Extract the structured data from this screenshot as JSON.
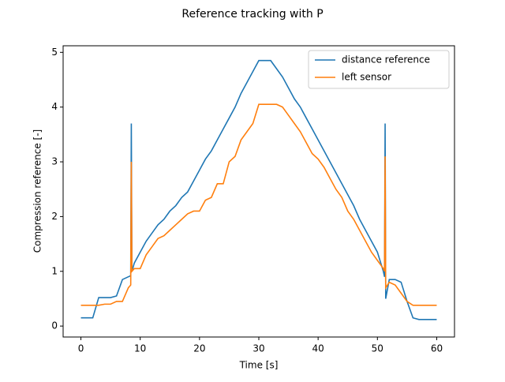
{
  "chart_data": {
    "type": "line",
    "title": "Reference tracking with P",
    "xlabel": "Time [s]",
    "ylabel": "Compression reference [-]",
    "x": [
      0,
      1,
      2,
      3,
      4,
      5,
      6,
      7,
      8,
      8.4,
      8.5,
      8.6,
      9,
      10,
      11,
      12,
      13,
      14,
      15,
      16,
      17,
      18,
      19,
      20,
      21,
      22,
      23,
      24,
      25,
      26,
      27,
      28,
      29,
      30,
      31,
      32,
      33,
      34,
      35,
      36,
      37,
      38,
      39,
      40,
      41,
      42,
      43,
      44,
      45,
      46,
      47,
      48,
      49,
      50,
      51,
      51.2,
      51.3,
      51.4,
      52,
      53,
      54,
      55,
      56,
      57,
      58,
      59,
      60
    ],
    "series": [
      {
        "name": "distance reference",
        "color": "#1f77b4",
        "values": [
          0.15,
          0.15,
          0.15,
          0.52,
          0.52,
          0.52,
          0.55,
          0.85,
          0.9,
          0.92,
          3.7,
          1.0,
          1.15,
          1.35,
          1.55,
          1.7,
          1.85,
          1.95,
          2.1,
          2.2,
          2.35,
          2.45,
          2.65,
          2.85,
          3.05,
          3.2,
          3.4,
          3.6,
          3.8,
          4.0,
          4.25,
          4.45,
          4.65,
          4.85,
          4.85,
          4.85,
          4.7,
          4.55,
          4.35,
          4.15,
          4.0,
          3.8,
          3.6,
          3.4,
          3.2,
          3.0,
          2.8,
          2.6,
          2.4,
          2.2,
          1.95,
          1.75,
          1.55,
          1.35,
          1.0,
          0.9,
          3.7,
          0.5,
          0.85,
          0.85,
          0.8,
          0.45,
          0.15,
          0.12,
          0.12,
          0.12,
          0.12
        ]
      },
      {
        "name": "left sensor",
        "color": "#ff7f0e",
        "values": [
          0.38,
          0.38,
          0.38,
          0.38,
          0.4,
          0.4,
          0.45,
          0.45,
          0.7,
          0.75,
          3.0,
          1.0,
          1.05,
          1.05,
          1.3,
          1.45,
          1.6,
          1.65,
          1.75,
          1.85,
          1.95,
          2.05,
          2.1,
          2.1,
          2.3,
          2.35,
          2.6,
          2.6,
          3.0,
          3.1,
          3.4,
          3.55,
          3.7,
          4.05,
          4.05,
          4.05,
          4.05,
          4.0,
          3.85,
          3.7,
          3.55,
          3.35,
          3.15,
          3.05,
          2.9,
          2.7,
          2.5,
          2.35,
          2.1,
          1.95,
          1.75,
          1.55,
          1.35,
          1.2,
          1.05,
          1.0,
          3.1,
          0.7,
          0.8,
          0.75,
          0.6,
          0.45,
          0.38,
          0.38,
          0.38,
          0.38,
          0.38
        ]
      }
    ],
    "xlim": [
      -3,
      63
    ],
    "xticks": [
      0,
      10,
      20,
      30,
      40,
      50,
      60
    ],
    "ylim": [
      -0.2,
      5.12
    ],
    "yticks": [
      0,
      1,
      2,
      3,
      4,
      5
    ],
    "legend": "upper right"
  }
}
